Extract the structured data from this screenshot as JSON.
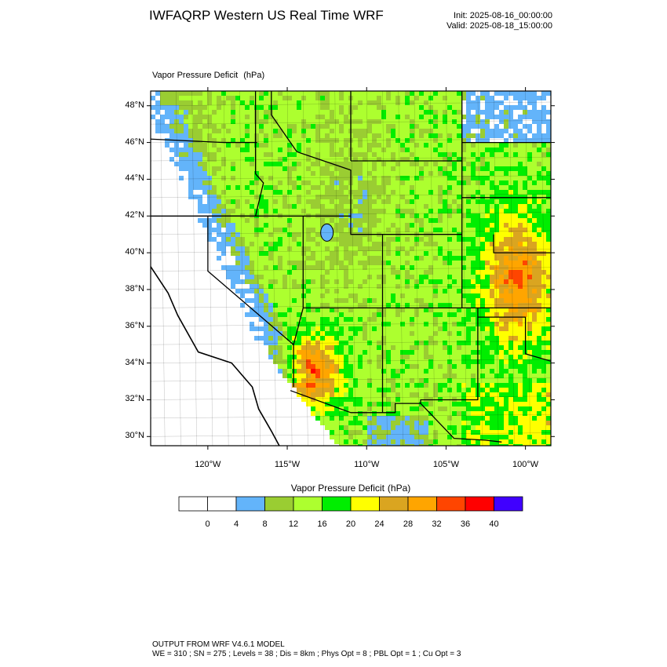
{
  "header": {
    "title": "IWFAQRP Western US Real Time WRF",
    "init": "Init: 2025-08-16_00:00:00",
    "valid": "Valid: 2025-08-18_15:00:00"
  },
  "field": {
    "name": "Vapor Pressure Deficit",
    "units": "(hPa)"
  },
  "map": {
    "lat_labels": [
      "48°N",
      "46°N",
      "44°N",
      "42°N",
      "40°N",
      "38°N",
      "36°N",
      "34°N",
      "32°N",
      "30°N"
    ],
    "lon_labels": [
      "120°W",
      "115°W",
      "110°W",
      "105°W",
      "100°W"
    ],
    "lat_range": [
      29.5,
      48.8
    ],
    "lon_range": [
      -123.6,
      -98.4
    ]
  },
  "colorbar": {
    "title": "Vapor Pressure Deficit",
    "units": "(hPa)",
    "colors": [
      "#ffffff",
      "#ffffff",
      "#63b4fa",
      "#9acd32",
      "#adff2f",
      "#00ee00",
      "#ffff00",
      "#daa520",
      "#ffa500",
      "#ff4500",
      "#ff0000",
      "#4000ff"
    ],
    "ticks": [
      "0",
      "4",
      "8",
      "12",
      "16",
      "20",
      "24",
      "28",
      "32",
      "36",
      "40"
    ]
  },
  "footer": {
    "line1": "OUTPUT FROM WRF V4.6.1 MODEL",
    "line2": "WE = 310 ; SN = 275 ; Levels = 38 ; Dis = 8km ; Phys Opt = 8 ; PBL Opt = 1 ; Cu Opt = 3"
  }
}
